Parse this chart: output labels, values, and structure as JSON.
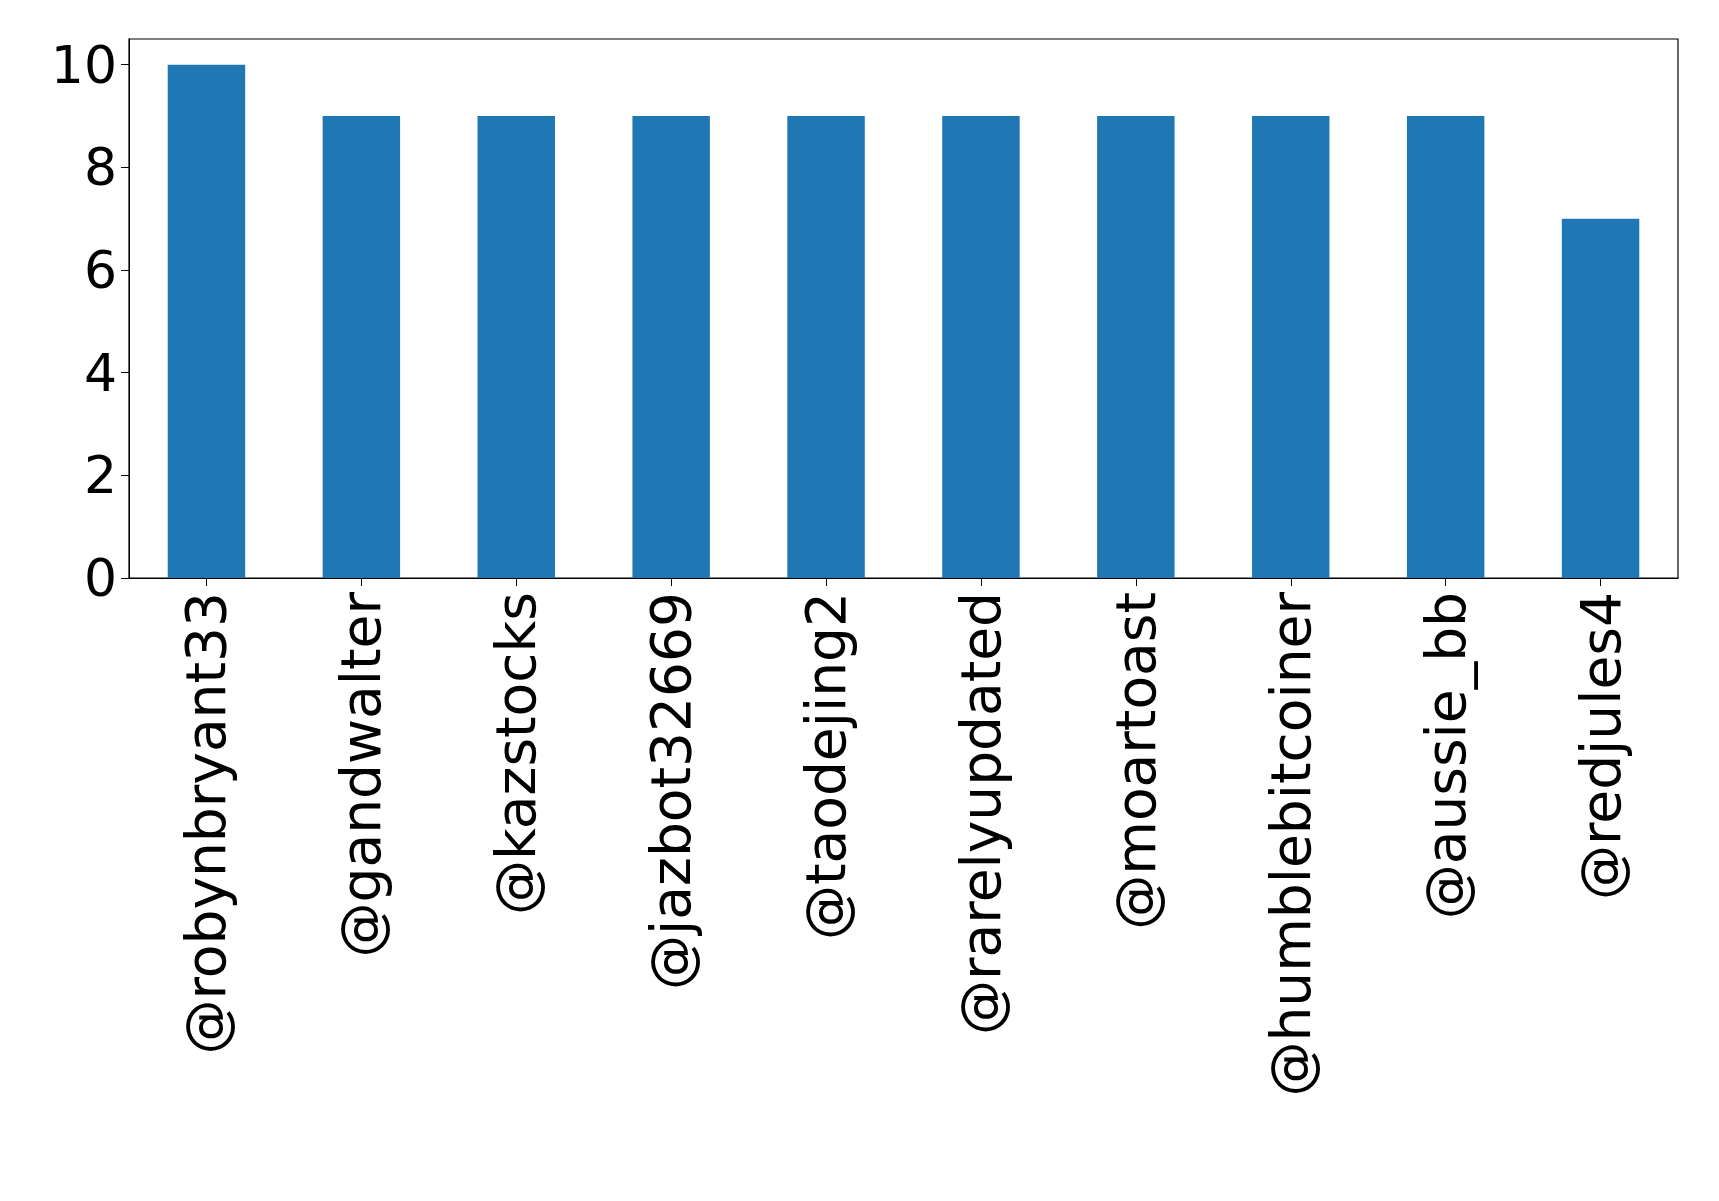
{
  "chart_data": {
    "type": "bar",
    "categories": [
      "@robynbryant33",
      "@gandwalter",
      "@kazstocks",
      "@jazbot32669",
      "@taodejing2",
      "@rarelyupdated",
      "@moartoast",
      "@humblebitcoiner",
      "@aussie_bb",
      "@redjules4"
    ],
    "values": [
      10,
      9,
      9,
      9,
      9,
      9,
      9,
      9,
      9,
      7
    ],
    "color": "#1f77b4",
    "ylim": [
      0,
      10.5
    ],
    "yticks": [
      0,
      2,
      4,
      6,
      8,
      10
    ],
    "grid": false
  }
}
